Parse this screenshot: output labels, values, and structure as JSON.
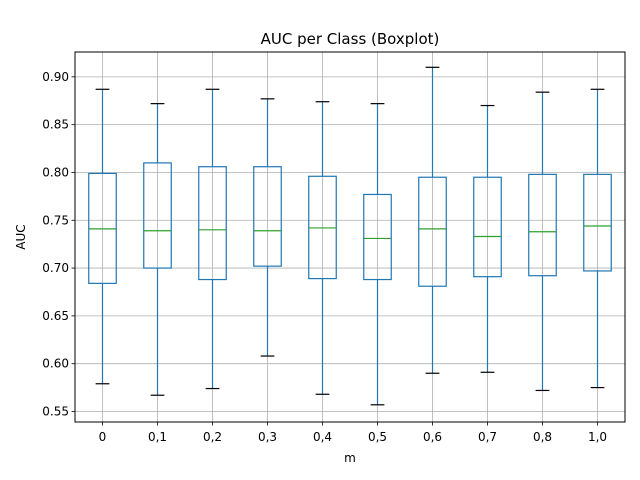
{
  "chart_data": {
    "type": "boxplot",
    "title": "AUC per Class (Boxplot)",
    "xlabel": "m",
    "ylabel": "AUC",
    "ylim": [
      0.539,
      0.926
    ],
    "yticks": [
      "0.55",
      "0.60",
      "0.65",
      "0.70",
      "0.75",
      "0.80",
      "0.85",
      "0.90"
    ],
    "grid": true,
    "colors": {
      "box": "#1f77b4",
      "median": "#2ca02c",
      "cap": "#000000",
      "grid": "#b0b0b0"
    },
    "categories": [
      "0",
      "0,1",
      "0,2",
      "0,3",
      "0,4",
      "0,5",
      "0,6",
      "0,7",
      "0,8",
      "1,0"
    ],
    "boxes": [
      {
        "category": "0",
        "whisker_low": 0.579,
        "q1": 0.684,
        "median": 0.741,
        "q3": 0.799,
        "whisker_high": 0.887
      },
      {
        "category": "0,1",
        "whisker_low": 0.567,
        "q1": 0.7,
        "median": 0.739,
        "q3": 0.81,
        "whisker_high": 0.872
      },
      {
        "category": "0,2",
        "whisker_low": 0.574,
        "q1": 0.688,
        "median": 0.74,
        "q3": 0.806,
        "whisker_high": 0.887
      },
      {
        "category": "0,3",
        "whisker_low": 0.608,
        "q1": 0.702,
        "median": 0.739,
        "q3": 0.806,
        "whisker_high": 0.877
      },
      {
        "category": "0,4",
        "whisker_low": 0.568,
        "q1": 0.689,
        "median": 0.742,
        "q3": 0.796,
        "whisker_high": 0.874
      },
      {
        "category": "0,5",
        "whisker_low": 0.557,
        "q1": 0.688,
        "median": 0.731,
        "q3": 0.777,
        "whisker_high": 0.872
      },
      {
        "category": "0,6",
        "whisker_low": 0.59,
        "q1": 0.681,
        "median": 0.741,
        "q3": 0.795,
        "whisker_high": 0.91
      },
      {
        "category": "0,7",
        "whisker_low": 0.591,
        "q1": 0.691,
        "median": 0.733,
        "q3": 0.795,
        "whisker_high": 0.87
      },
      {
        "category": "0,8",
        "whisker_low": 0.572,
        "q1": 0.692,
        "median": 0.738,
        "q3": 0.798,
        "whisker_high": 0.884
      },
      {
        "category": "1,0",
        "whisker_low": 0.575,
        "q1": 0.697,
        "median": 0.744,
        "q3": 0.798,
        "whisker_high": 0.887
      }
    ]
  }
}
